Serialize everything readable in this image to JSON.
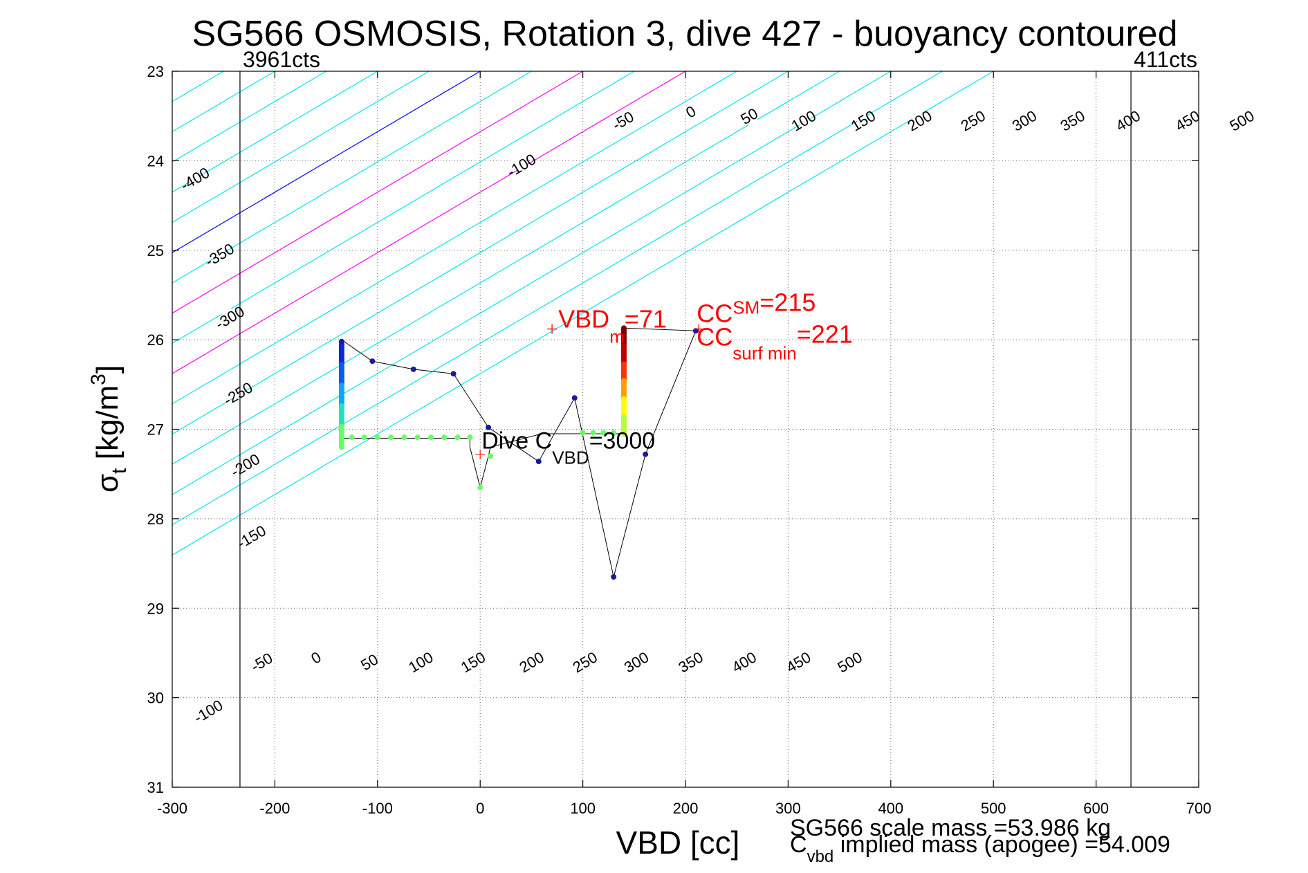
{
  "chart_data": {
    "type": "scatter",
    "title": "SG566 OSMOSIS, Rotation 3, dive 427 - buoyancy contoured",
    "xlabel": "VBD [cc]",
    "ylabel": {
      "symbol": "σ",
      "sub": "t",
      "unit_open": " [kg/m",
      "sup": "3",
      "unit_close": "]"
    },
    "xlim": [
      -300,
      700
    ],
    "ylim": [
      23,
      31
    ],
    "y_reversed": true,
    "grid": true,
    "x_ticks": [
      -300,
      -200,
      -100,
      0,
      100,
      200,
      300,
      400,
      500,
      600,
      700
    ],
    "x_tick_labels": [
      "-300",
      "-200",
      "-100",
      "0",
      "100",
      "200",
      "300",
      "400",
      "500",
      "600",
      "700"
    ],
    "y_ticks": [
      23,
      24,
      25,
      26,
      27,
      28,
      29,
      30,
      31
    ],
    "y_tick_labels": [
      "23",
      "24",
      "25",
      "26",
      "27",
      "28",
      "29",
      "30",
      "31"
    ],
    "vbd_limits": [
      {
        "x": -234,
        "label": "3961cts"
      },
      {
        "x": 634,
        "label": "411cts"
      }
    ],
    "contours": {
      "slope_cc_per_sigma": -148,
      "reference_sigma": 23,
      "levels": [
        -700,
        -650,
        -600,
        -550,
        -500,
        -450,
        -400,
        -350,
        -300,
        -250,
        -200,
        -150,
        -100,
        -50,
        0,
        50,
        100,
        150,
        200,
        250,
        300,
        350,
        400,
        450,
        500
      ],
      "colors": {
        "default": "#00e5ee",
        "zero": "#0000ff",
        "highlight": "#ff00ff"
      },
      "highlight_levels": [
        100,
        200
      ],
      "top_labels": [
        {
          "level": -400,
          "x": -278,
          "y": 24.2,
          "text": "-400"
        },
        {
          "level": -350,
          "x": -254,
          "y": 25.05,
          "text": "-350"
        },
        {
          "level": -300,
          "x": -244,
          "y": 25.75,
          "text": "-300"
        },
        {
          "level": -250,
          "x": -236,
          "y": 26.6,
          "text": "-250"
        },
        {
          "level": -200,
          "x": -229,
          "y": 27.4,
          "text": "-200"
        },
        {
          "level": -150,
          "x": -223,
          "y": 28.2,
          "text": "-150"
        },
        {
          "level": -100,
          "x": 40,
          "y": 24.05,
          "text": "-100"
        },
        {
          "level": -50,
          "x": 139,
          "y": 23.55,
          "text": "-50"
        },
        {
          "level": 0,
          "x": 205,
          "y": 23.45,
          "text": "0"
        },
        {
          "level": 50,
          "x": 262,
          "y": 23.5,
          "text": "50"
        },
        {
          "level": 100,
          "x": 315,
          "y": 23.55,
          "text": "100"
        },
        {
          "level": 150,
          "x": 373,
          "y": 23.55,
          "text": "150"
        },
        {
          "level": 200,
          "x": 428,
          "y": 23.55,
          "text": "200"
        },
        {
          "level": 250,
          "x": 480,
          "y": 23.55,
          "text": "250"
        },
        {
          "level": 300,
          "x": 530,
          "y": 23.55,
          "text": "300"
        },
        {
          "level": 350,
          "x": 577,
          "y": 23.55,
          "text": "350"
        },
        {
          "level": 400,
          "x": 631,
          "y": 23.55,
          "text": "400"
        },
        {
          "level": 450,
          "x": 689,
          "y": 23.55,
          "text": "450"
        },
        {
          "level": 500,
          "x": 742,
          "y": 23.55,
          "text": "500"
        }
      ],
      "bottom_labels": [
        {
          "level": -100,
          "x": -265,
          "y": 30.15,
          "text": "-100"
        },
        {
          "level": -50,
          "x": -213,
          "y": 29.6,
          "text": "-50"
        },
        {
          "level": 0,
          "x": -160,
          "y": 29.55,
          "text": "0"
        },
        {
          "level": 50,
          "x": -108,
          "y": 29.6,
          "text": "50"
        },
        {
          "level": 100,
          "x": -58,
          "y": 29.6,
          "text": "100"
        },
        {
          "level": 150,
          "x": -7,
          "y": 29.6,
          "text": "150"
        },
        {
          "level": 200,
          "x": 50,
          "y": 29.6,
          "text": "200"
        },
        {
          "level": 250,
          "x": 102,
          "y": 29.6,
          "text": "250"
        },
        {
          "level": 300,
          "x": 152,
          "y": 29.6,
          "text": "300"
        },
        {
          "level": 350,
          "x": 205,
          "y": 29.6,
          "text": "350"
        },
        {
          "level": 400,
          "x": 257,
          "y": 29.6,
          "text": "400"
        },
        {
          "level": 450,
          "x": 310,
          "y": 29.6,
          "text": "450"
        },
        {
          "level": 500,
          "x": 360,
          "y": 29.6,
          "text": "500"
        }
      ]
    },
    "dive_track": [
      [
        210,
        25.9
      ],
      [
        140,
        25.87
      ],
      [
        140,
        26.5
      ],
      [
        140,
        27.05
      ],
      [
        130,
        27.05
      ],
      [
        100,
        27.05
      ],
      [
        60,
        27.05
      ],
      [
        10,
        27.2
      ],
      [
        8,
        27.3
      ],
      [
        8,
        27.3
      ],
      [
        0,
        27.65
      ],
      [
        -10,
        27.2
      ],
      [
        -10,
        27.1
      ],
      [
        -100,
        27.1
      ],
      [
        -135,
        27.1
      ],
      [
        -135,
        27.2
      ],
      [
        -135,
        26.5
      ],
      [
        -135,
        26.0
      ],
      [
        -105,
        26.24
      ],
      [
        -65,
        26.33
      ],
      [
        -26,
        26.38
      ],
      [
        8,
        26.98
      ],
      [
        57,
        27.36
      ],
      [
        92,
        26.65
      ],
      [
        130,
        28.65
      ],
      [
        161,
        27.28
      ],
      [
        210,
        25.9
      ]
    ],
    "series": [
      {
        "name": "",
        "color": "#1a1aa0",
        "points": [
          [
            -105,
            26.24
          ],
          [
            -65,
            26.33
          ],
          [
            -26,
            26.38
          ],
          [
            8,
            26.98
          ],
          [
            57,
            27.36
          ],
          [
            92,
            26.65
          ],
          [
            130,
            28.65
          ],
          [
            161,
            27.28
          ],
          [
            210,
            25.9
          ],
          [
            -135,
            26.02
          ]
        ]
      },
      {
        "name": "",
        "color": "#66ff66",
        "points": [
          [
            -125,
            27.09
          ],
          [
            -113,
            27.09
          ],
          [
            -100,
            27.09
          ],
          [
            -87,
            27.09
          ],
          [
            -74,
            27.09
          ],
          [
            -61,
            27.09
          ],
          [
            -48,
            27.09
          ],
          [
            -35,
            27.09
          ],
          [
            -22,
            27.09
          ],
          [
            -10,
            27.09
          ],
          [
            10,
            27.3
          ],
          [
            0,
            27.65
          ],
          [
            100,
            27.04
          ],
          [
            110,
            27.04
          ],
          [
            120,
            27.04
          ],
          [
            130,
            27.04
          ]
        ]
      }
    ],
    "vertical_profiles": [
      {
        "x": -135,
        "y_top": 26.05,
        "y_bottom": 27.2,
        "colors": [
          "#0a28d8",
          "#0a5aee",
          "#08a6ff",
          "#20e0c0",
          "#66ff66"
        ]
      },
      {
        "x": 140,
        "y_top": 25.87,
        "y_bottom": 27.05,
        "colors": [
          "#800000",
          "#c00000",
          "#ff3000",
          "#ffa000",
          "#ffff00",
          "#b4ff40"
        ]
      }
    ],
    "annotations": [
      {
        "kind": "vbd_m",
        "x": 70,
        "y": 25.88,
        "marker": "+",
        "color": "#ff0000",
        "main": "VBD",
        "sub": "m",
        "tail": "=71"
      },
      {
        "kind": "cc_sm",
        "x": 213,
        "y": 25.88,
        "marker": "+",
        "color": "#ff0000",
        "main": "CC",
        "sup": "SM",
        "tail": "=215"
      },
      {
        "kind": "cc_surf",
        "main": "CC",
        "sub": "surf min",
        "tail": "=221",
        "color": "#ff0000"
      },
      {
        "kind": "dive_cvbd",
        "x": 0,
        "y": 27.28,
        "marker": "+",
        "color": "#000000",
        "main": "Dive C",
        "sub": "VBD",
        "tail": "=3000"
      }
    ],
    "footer": {
      "scale_mass": "SG566 scale mass =53.986 kg",
      "implied_mass_main": "C",
      "implied_mass_sub": "vbd",
      "implied_mass_tail": " implied mass (apogee) =54.009"
    }
  }
}
